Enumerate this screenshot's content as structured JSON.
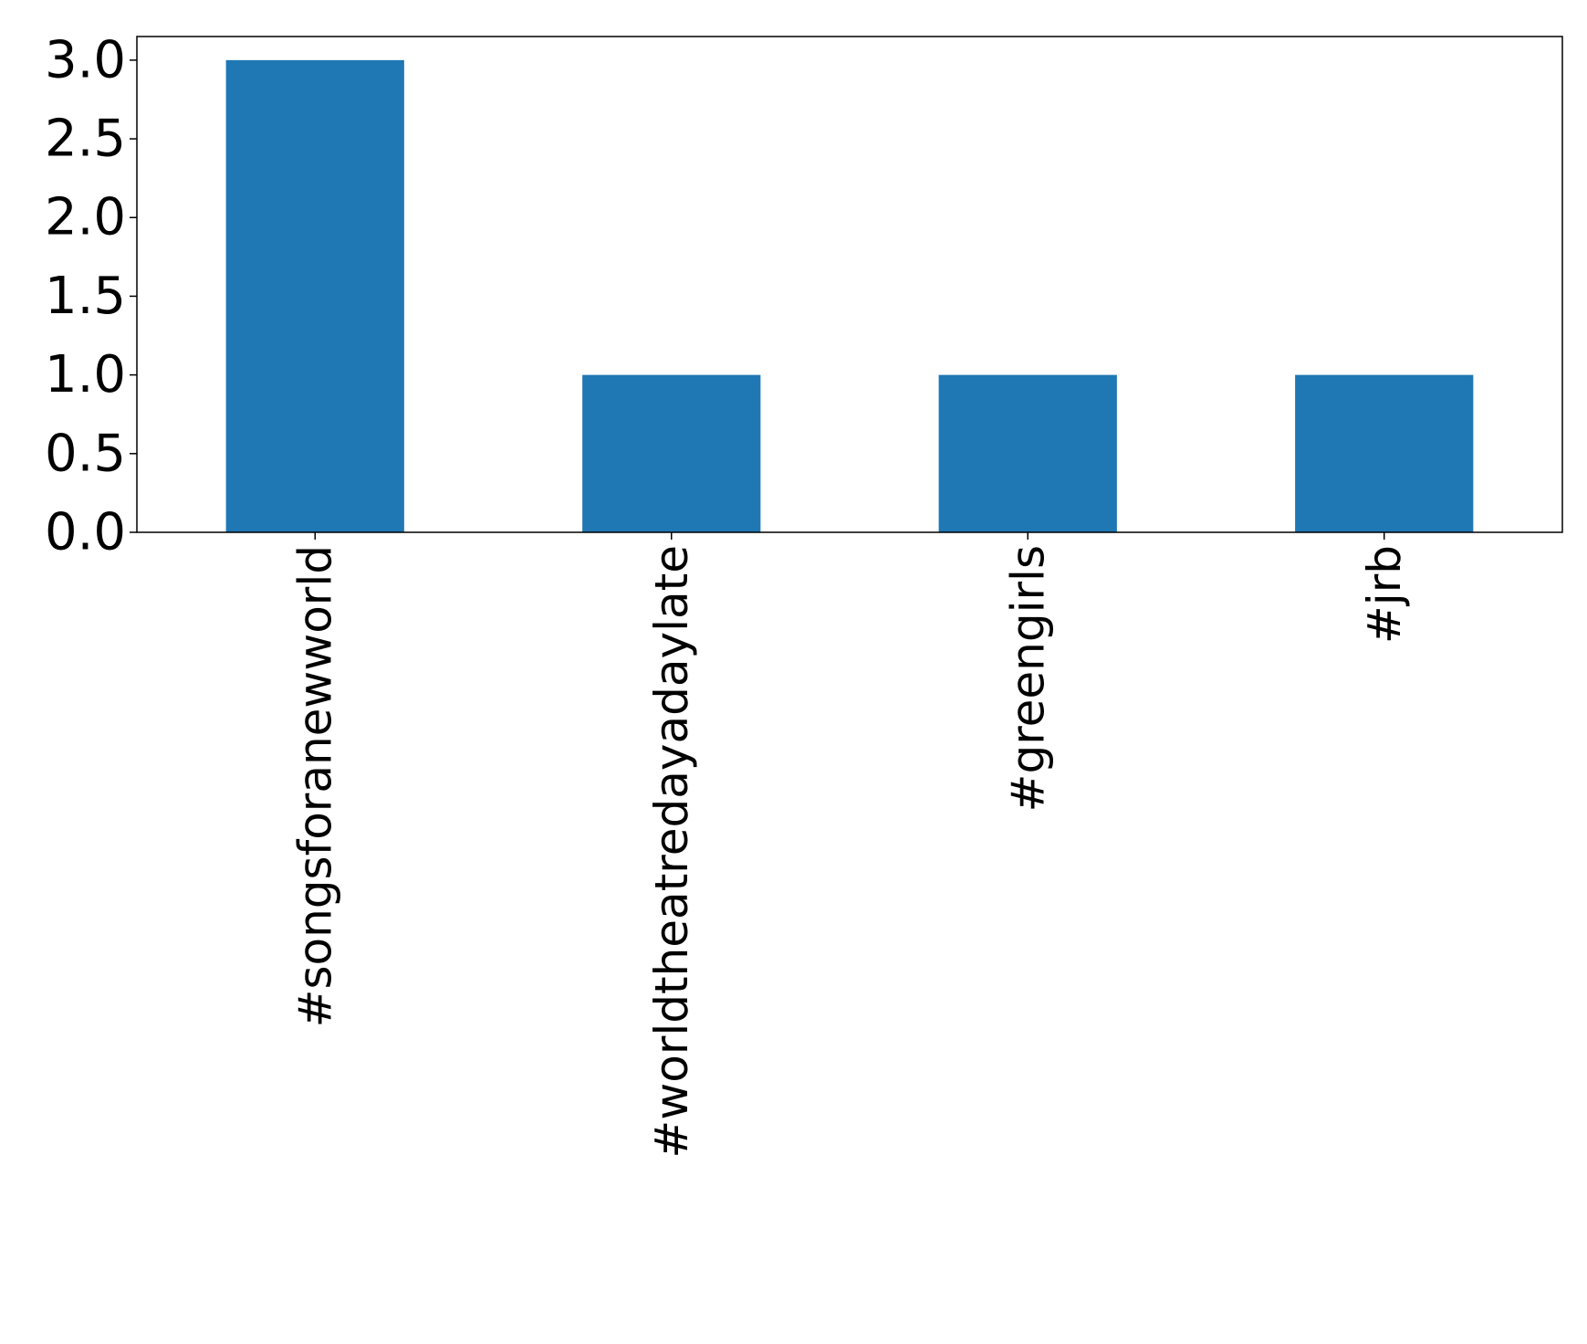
{
  "chart_data": {
    "type": "bar",
    "categories": [
      "#songsforanewworld",
      "#worldtheatredayadaylate",
      "#greengirls",
      "#jrb"
    ],
    "values": [
      3,
      1,
      1,
      1
    ],
    "ylim": [
      0,
      3.15
    ],
    "yticks": [
      "0.0",
      "0.5",
      "1.0",
      "1.5",
      "2.0",
      "2.5",
      "3.0"
    ],
    "bar_color": "#1f77b4",
    "grid": false,
    "legend": false
  }
}
